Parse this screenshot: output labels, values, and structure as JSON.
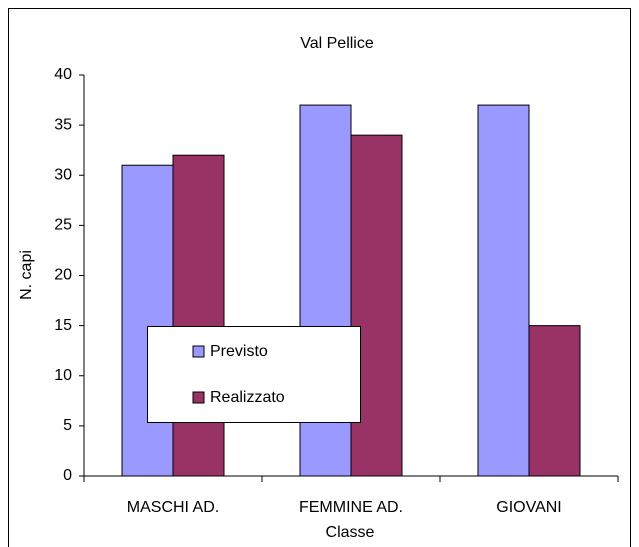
{
  "chart_data": {
    "type": "bar",
    "title": "Val Pellice",
    "y_label": "N. capi",
    "x_label": "Classe",
    "categories": [
      "MASCHI AD.",
      "FEMMINE AD.",
      "GIOVANI"
    ],
    "series": [
      {
        "name": "Previsto",
        "color": "#9999ff",
        "values": [
          31,
          37,
          37
        ]
      },
      {
        "name": "Realizzato",
        "color": "#993366",
        "values": [
          32,
          34,
          15
        ]
      }
    ],
    "ylim": [
      0,
      40
    ],
    "yticks": [
      0,
      5,
      10,
      15,
      20,
      25,
      30,
      35,
      40
    ]
  }
}
